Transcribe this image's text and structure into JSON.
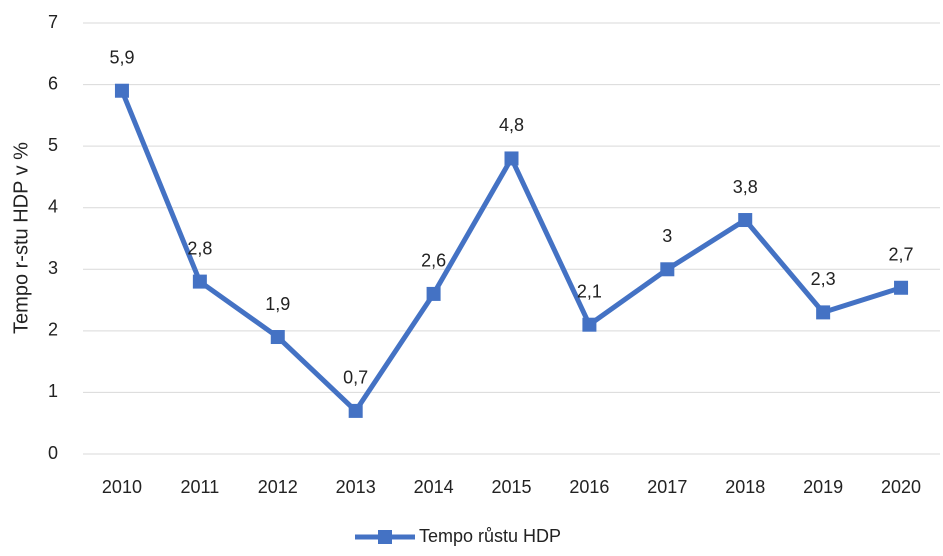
{
  "chart_data": {
    "type": "line",
    "y_label": "Tempo r-stu HDP v %",
    "categories": [
      "2010",
      "2011",
      "2012",
      "2013",
      "2014",
      "2015",
      "2016",
      "2017",
      "2018",
      "2019",
      "2020"
    ],
    "series": [
      {
        "name": "Tempo růstu HDP",
        "color": "#4472c4",
        "values": [
          5.9,
          2.8,
          1.9,
          0.7,
          2.6,
          4.8,
          2.1,
          3,
          3.8,
          2.3,
          2.7
        ],
        "value_labels": [
          "5,9",
          "2,8",
          "1,9",
          "0,7",
          "2,6",
          "4,8",
          "2,1",
          "3",
          "3,8",
          "2,3",
          "2,7"
        ]
      }
    ],
    "ylim": [
      0,
      7
    ],
    "yticks": [
      0,
      1,
      2,
      3,
      4,
      5,
      6,
      7
    ],
    "grid": true,
    "legend": "bottom"
  }
}
